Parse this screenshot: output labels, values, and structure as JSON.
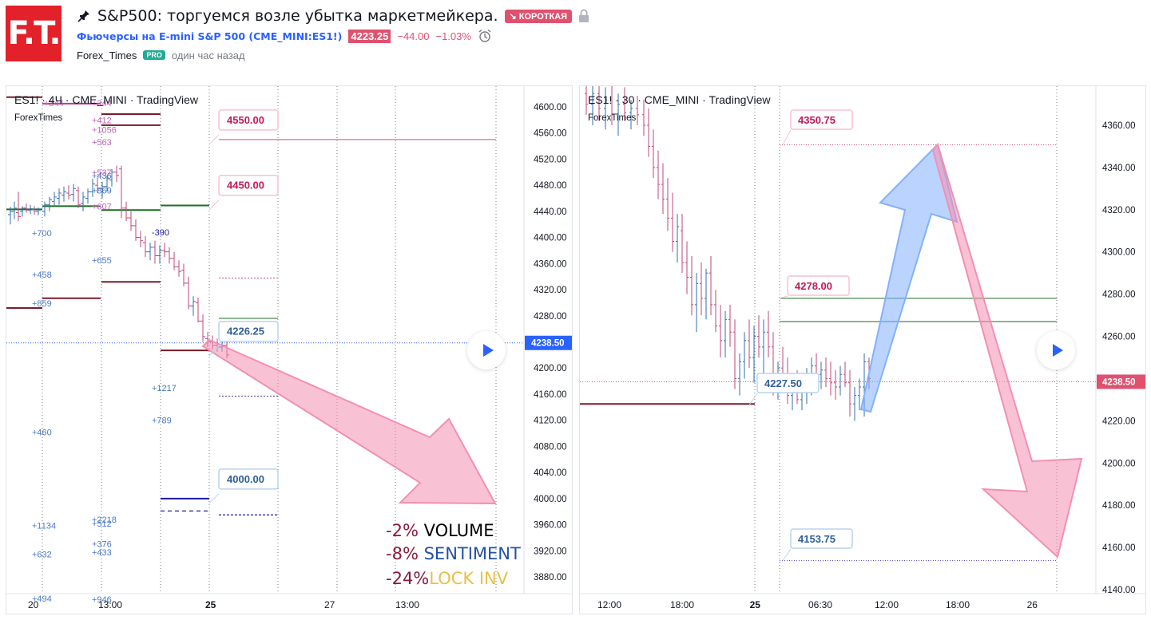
{
  "header": {
    "logo_text": "F.T.",
    "title": "S&P500: торгуемся возле убытка маркетмейкера.",
    "badge": "↘ КОРОТКАЯ",
    "symbol_link": "Фьючерсы на E-mini S&P 500 (CME_MINI:ES1!)",
    "price": "4223.25",
    "change": "−44.00",
    "change_pct": "−1.03%",
    "author": "Forex_Times",
    "pro": "PRO",
    "time_ago": "один час назад"
  },
  "colors": {
    "accent": "#2962ff",
    "short": "#e0516f",
    "up_bar": "#2f6fa8",
    "down_bar": "#c0467b",
    "arrow_pink": "#f48fb1",
    "arrow_blue": "#82b1ff"
  },
  "left_chart": {
    "watermark": "ES1! · 4Ч · CME_MINI · TradingView",
    "brand": "ForexTimes",
    "y_ticks": [
      "4600.00",
      "4560.00",
      "4520.00",
      "4480.00",
      "4440.00",
      "4400.00",
      "4360.00",
      "4320.00",
      "4280.00",
      "4240.00",
      "4200.00",
      "4160.00",
      "4120.00",
      "4080.00",
      "4040.00",
      "4000.00",
      "3960.00",
      "3920.00",
      "3880.00"
    ],
    "current_price": "4238.50",
    "x_ticks": [
      "20",
      "13:00",
      "25",
      "27",
      "13:00"
    ],
    "level_labels": [
      "4550.00",
      "4450.00",
      "4226.25",
      "4000.00"
    ],
    "volume_profile_left": [
      "+700",
      "+458",
      "+859",
      "+460",
      "+1134",
      "+632",
      "+494"
    ],
    "volume_profile_mid": [
      "+412",
      "+1056",
      "+563",
      "+537",
      "+436",
      "+869",
      "+607",
      "+655",
      "+2218",
      "+512",
      "+376",
      "+433",
      "+946"
    ],
    "volume_profile_right": [
      "-390",
      "+1217",
      "+789"
    ],
    "top_cut_label": "+344",
    "stats": [
      {
        "pct": "-2%",
        "name": "VOLUME",
        "name_color": "#000000"
      },
      {
        "pct": "-8%",
        "name": "SENTIMENT",
        "name_color": "#2151a8"
      },
      {
        "pct": "-24%",
        "name": "LOCK INV",
        "name_color": "#e8c04a"
      }
    ]
  },
  "right_chart": {
    "watermark": "ES1! · 30 · CME_MINI · TradingView",
    "brand": "ForexTimes",
    "y_ticks": [
      "4360.00",
      "4340.00",
      "4320.00",
      "4300.00",
      "4280.00",
      "4260.00",
      "4240.00",
      "4220.00",
      "4200.00",
      "4180.00",
      "4160.00",
      "4140.00"
    ],
    "current_price": "4238.50",
    "x_ticks": [
      "12:00",
      "18:00",
      "25",
      "06:30",
      "12:00",
      "18:00",
      "26"
    ],
    "level_labels": [
      "4350.75",
      "4278.00",
      "4227.50",
      "4153.75"
    ]
  }
}
